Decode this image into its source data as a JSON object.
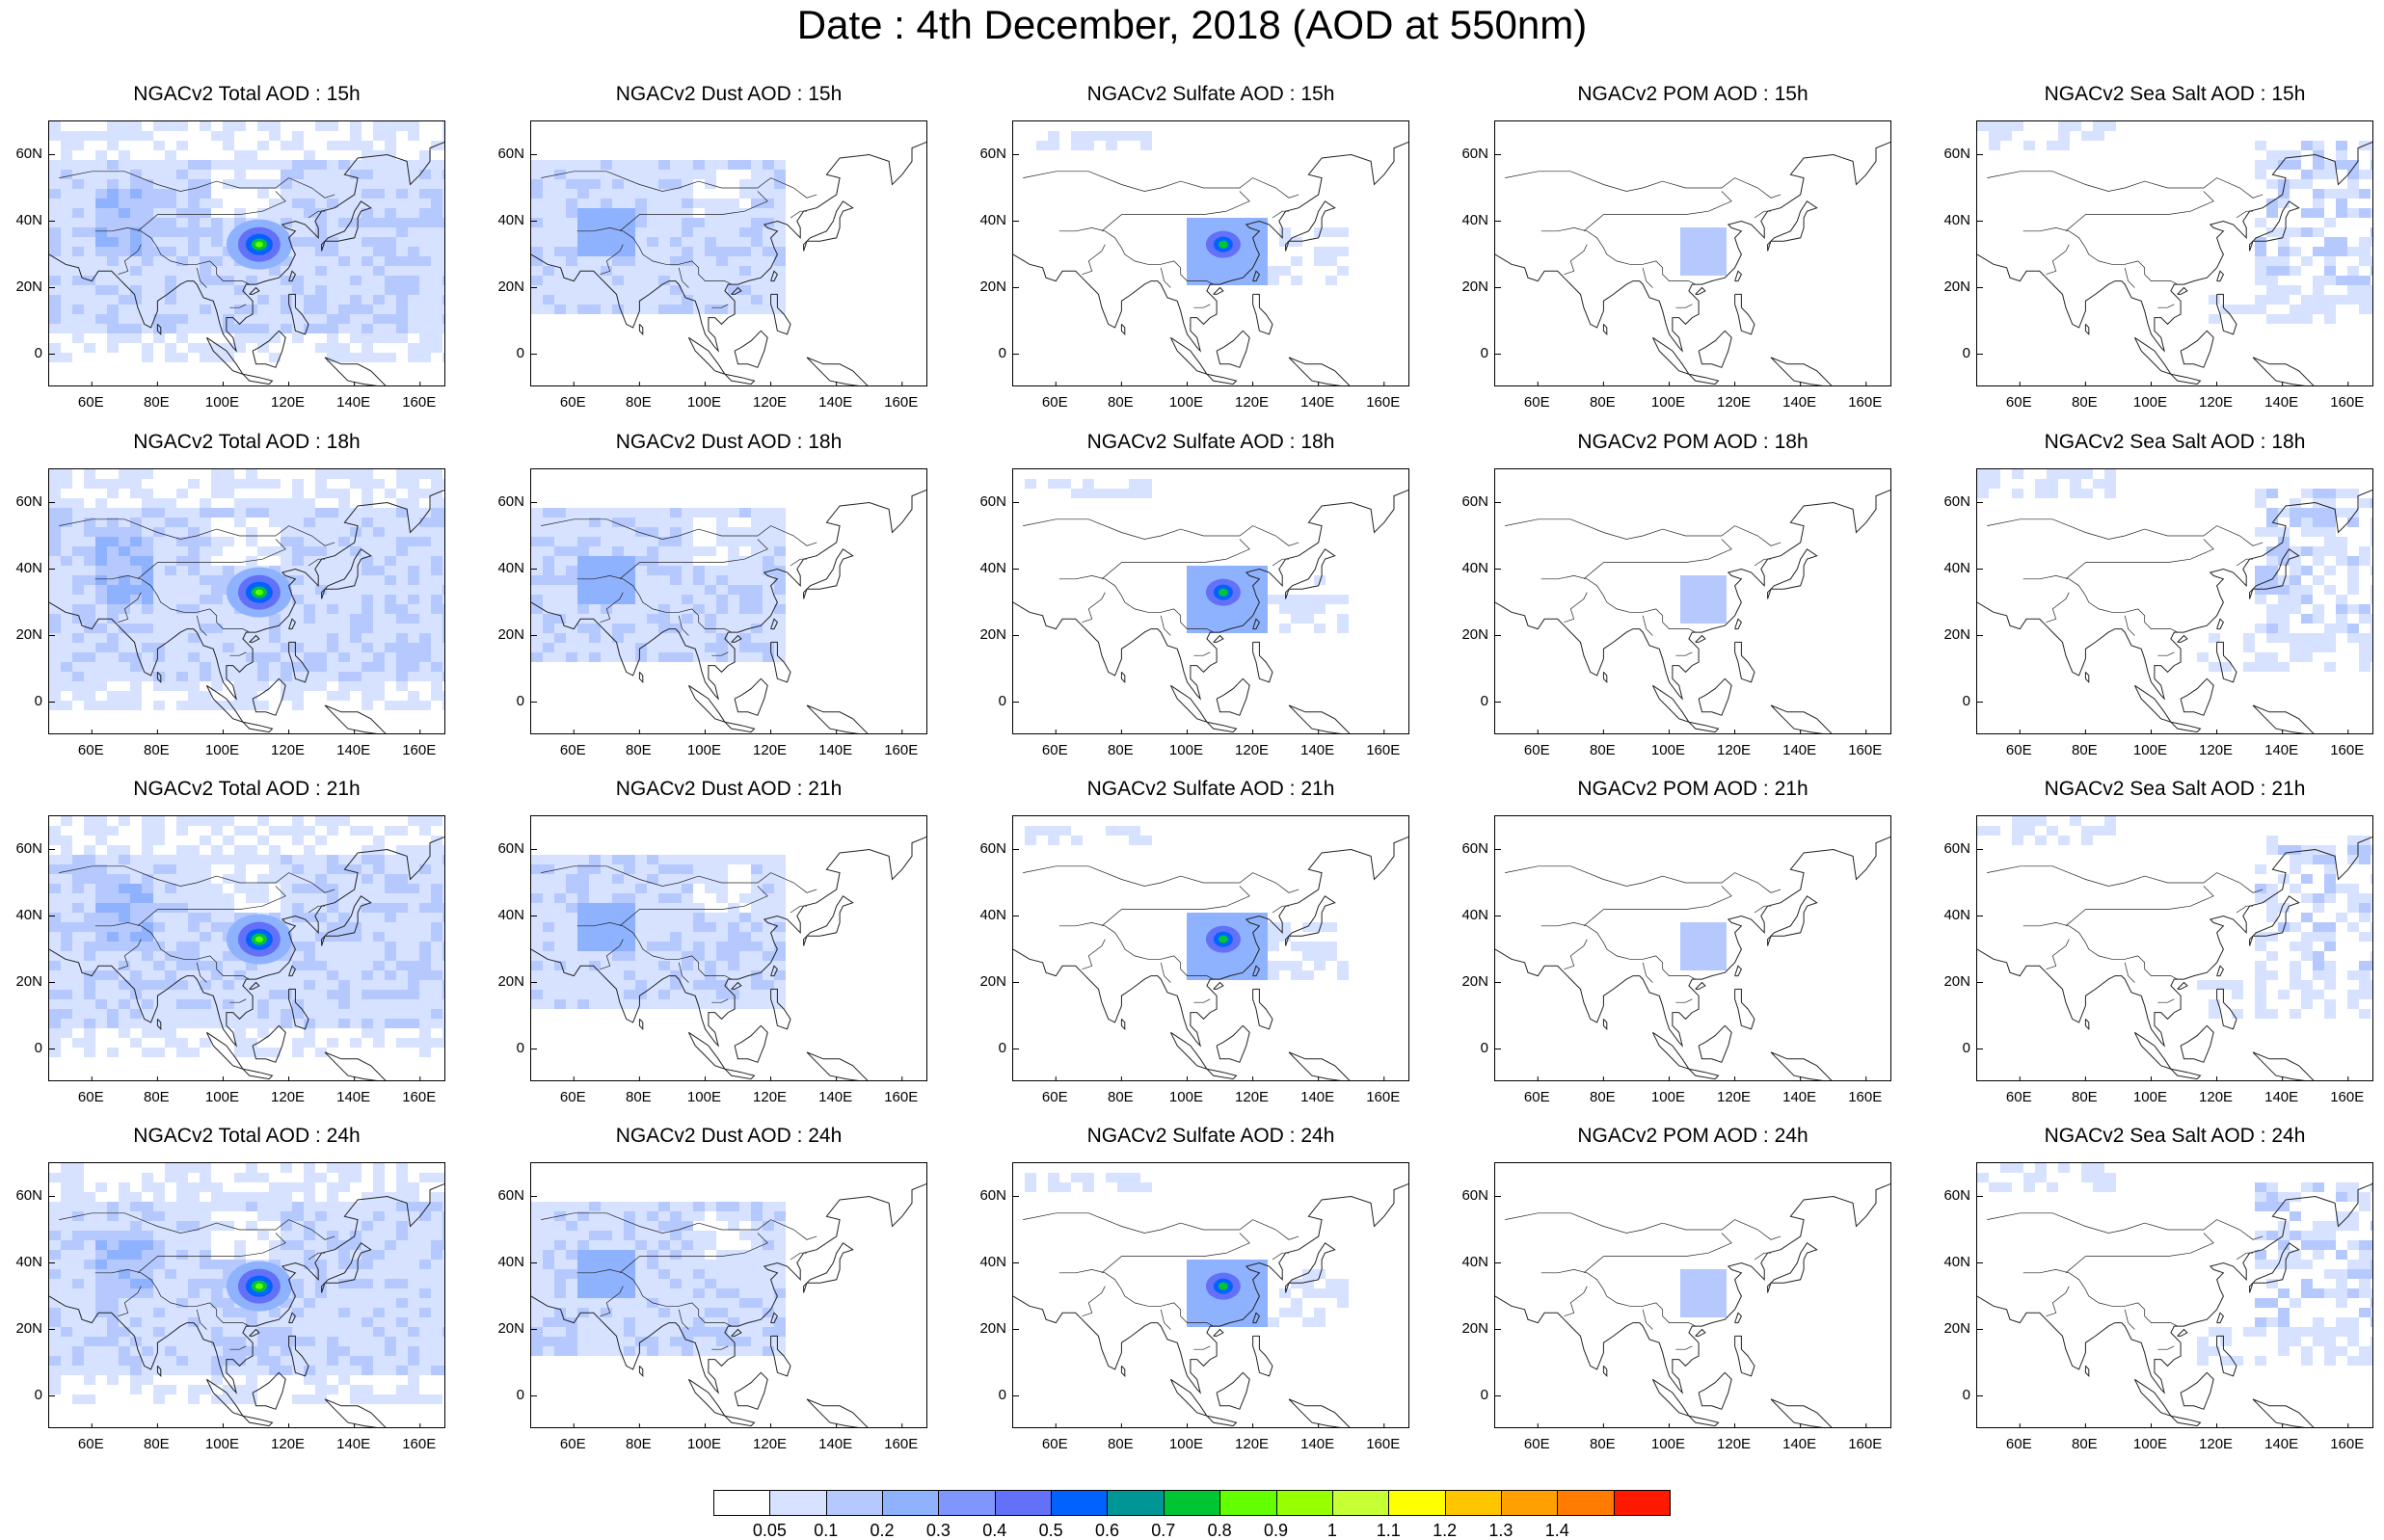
{
  "title": "Date : 4th December, 2018 (AOD at 550nm)",
  "panel_titles": [
    [
      "NGACv2 Total AOD : 15h",
      "NGACv2 Dust AOD : 15h",
      "NGACv2 Sulfate AOD : 15h",
      "NGACv2 POM AOD : 15h",
      "NGACv2 Sea Salt AOD : 15h"
    ],
    [
      "NGACv2 Total AOD : 18h",
      "NGACv2 Dust AOD : 18h",
      "NGACv2 Sulfate AOD : 18h",
      "NGACv2 POM AOD : 18h",
      "NGACv2 Sea Salt AOD : 18h"
    ],
    [
      "NGACv2 Total AOD : 21h",
      "NGACv2 Dust AOD : 21h",
      "NGACv2 Sulfate AOD : 21h",
      "NGACv2 POM AOD : 21h",
      "NGACv2 Sea Salt AOD : 21h"
    ],
    [
      "NGACv2 Total AOD : 24h",
      "NGACv2 Dust AOD : 24h",
      "NGACv2 Sulfate AOD : 24h",
      "NGACv2 POM AOD : 24h",
      "NGACv2 Sea Salt  AOD : 24h"
    ]
  ],
  "lat_labels": [
    "60N",
    "40N",
    "20N",
    "0"
  ],
  "lon_labels": [
    "60E",
    "80E",
    "100E",
    "120E",
    "140E",
    "160E"
  ],
  "colorbar": {
    "labels": [
      "0.05",
      "0.1",
      "0.2",
      "0.3",
      "0.4",
      "0.5",
      "0.6",
      "0.7",
      "0.8",
      "0.9",
      "1",
      "1.1",
      "1.2",
      "1.3",
      "1.4"
    ],
    "colors": [
      "#ffffff",
      "#d6e2ff",
      "#b5c9ff",
      "#8fb2ff",
      "#7f96ff",
      "#6370f8",
      "#0063ff",
      "#009696",
      "#00c633",
      "#63ff00",
      "#96ff00",
      "#c6ff33",
      "#ffff00",
      "#ffc600",
      "#ffa000",
      "#ff7c00",
      "#ff1900"
    ]
  }
}
